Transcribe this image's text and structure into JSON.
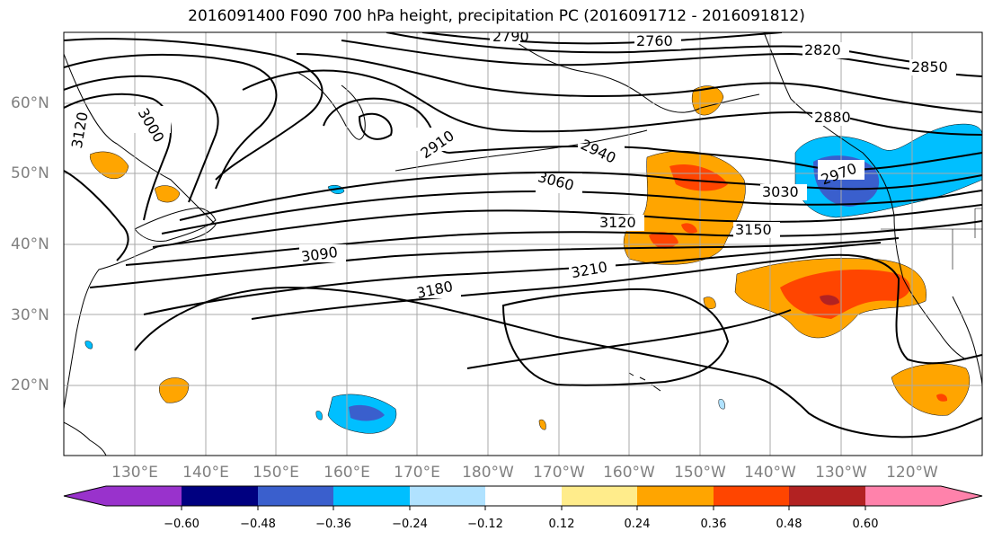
{
  "title": "2016091400 F090 700 hPa height, precipitation PC (2016091712 - 2016091812)",
  "lat_labels": [
    "60°N",
    "50°N",
    "40°N",
    "30°N",
    "20°N"
  ],
  "lon_labels": [
    "130°E",
    "140°E",
    "150°E",
    "160°E",
    "170°E",
    "180°W",
    "170°W",
    "160°W",
    "150°W",
    "140°W",
    "130°W",
    "120°W"
  ],
  "contour_labels": [
    "2790",
    "2760",
    "2820",
    "2850",
    "3000",
    "3120",
    "2910",
    "2940",
    "3060",
    "2880",
    "2970",
    "3030",
    "3090",
    "3120",
    "3150",
    "3180",
    "3210"
  ],
  "colorbar": {
    "ticks": [
      "−0.60",
      "−0.48",
      "−0.36",
      "−0.24",
      "−0.12",
      "0.12",
      "0.24",
      "0.36",
      "0.48",
      "0.60"
    ],
    "colors": [
      "#9932cc",
      "#000080",
      "#3a5fcd",
      "#00bfff",
      "#b0e2ff",
      "#ffffff",
      "#ffec8b",
      "#ffa500",
      "#ff4500",
      "#b22222",
      "#ff82ab"
    ]
  },
  "colors": {
    "gridline": "#a9a9a9",
    "label_gray": "#808080",
    "pos_light": "#ffa500",
    "pos_mid": "#ff4500",
    "pos_dark": "#b22222",
    "neg_light": "#00bfff",
    "neg_mid": "#3a5fcd"
  }
}
